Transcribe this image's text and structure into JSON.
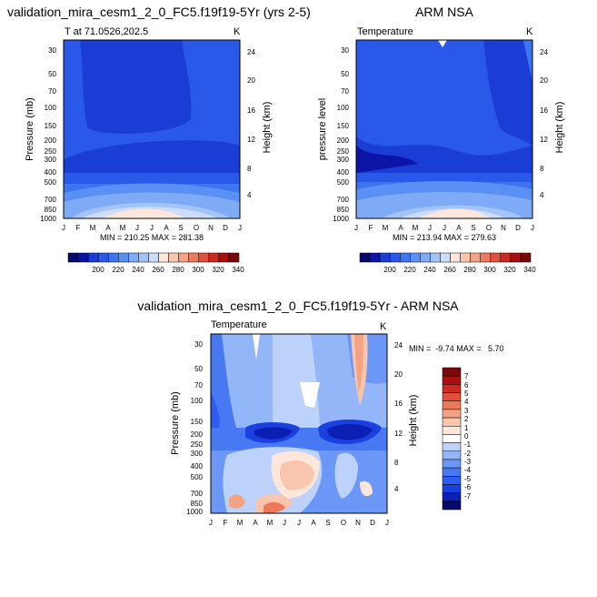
{
  "colors": {
    "abs_scale": [
      "#08086b",
      "#0b14a6",
      "#1a3dd6",
      "#2a58e8",
      "#3d75f0",
      "#5a90f4",
      "#7eaaf6",
      "#a4c3f8",
      "#cddcf9",
      "#fde6da",
      "#f9c5ad",
      "#f3a283",
      "#ec7a5a",
      "#e0503a",
      "#cc2a20",
      "#a80f10",
      "#7a0a0a"
    ],
    "diff_scale": [
      "#08086b",
      "#0b1fb3",
      "#1a40e0",
      "#2d5cf0",
      "#4879f3",
      "#6b98f6",
      "#93b6f8",
      "#bcd2fa",
      "#ffffff",
      "#fde6da",
      "#f9c5ad",
      "#f3a283",
      "#ec7a5a",
      "#e0503a",
      "#cc2a20",
      "#a80f10",
      "#7a0a0a"
    ]
  },
  "months": [
    "J",
    "F",
    "M",
    "A",
    "M",
    "J",
    "J",
    "A",
    "S",
    "O",
    "N",
    "D",
    "J"
  ],
  "pressure_ticks": [
    "30",
    "50",
    "70",
    "100",
    "150",
    "200",
    "250",
    "300",
    "400",
    "500",
    "700",
    "850",
    "1000"
  ],
  "height_ticks": [
    "24",
    "20",
    "16",
    "12",
    "8",
    "4"
  ],
  "units": "K",
  "chart_data": [
    {
      "type": "heatmap",
      "title": "validation_mira_cesm1_2_0_FC5.f19f19-5Yr (yrs 2-5)",
      "subtitle": "T at 71.0526,202.5",
      "ylabel": "Pressure (mb)",
      "y2label": "Height (km)",
      "stats": "MIN = 210.25 MAX = 281.38",
      "min": 210.25,
      "max": 281.38,
      "colorbar_labels": [
        "200",
        "220",
        "240",
        "260",
        "280",
        "300",
        "320",
        "340"
      ]
    },
    {
      "type": "heatmap",
      "title": "ARM NSA",
      "subtitle": "Temperature",
      "ylabel": "pressure level",
      "y2label": "Height (km)",
      "stats": "MIN = 213.94 MAX = 279.63",
      "min": 213.94,
      "max": 279.63,
      "colorbar_labels": [
        "200",
        "220",
        "240",
        "260",
        "280",
        "300",
        "320",
        "340"
      ]
    },
    {
      "type": "heatmap",
      "title": "validation_mira_cesm1_2_0_FC5.f19f19-5Yr - ARM NSA",
      "subtitle": "Temperature",
      "ylabel": "Pressure (mb)",
      "y2label": "Height (km)",
      "stats": "MIN =  -9.74 MAX =   5.70",
      "min": -9.74,
      "max": 5.7,
      "colorbar_labels": [
        "7",
        "6",
        "5",
        "4",
        "3",
        "2",
        "1",
        "0",
        "-1",
        "-2",
        "-3",
        "-4",
        "-5",
        "-6",
        "-7"
      ]
    }
  ]
}
